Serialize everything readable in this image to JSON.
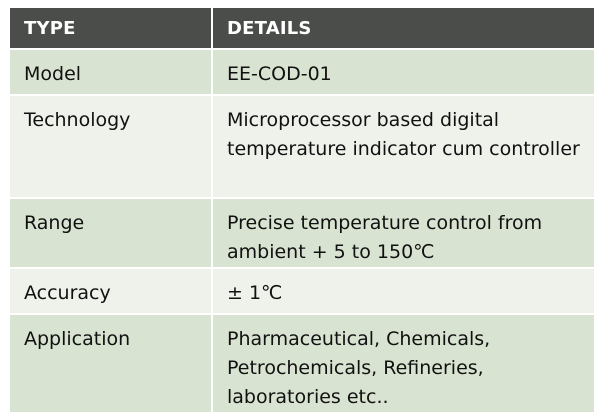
{
  "table": {
    "headers": [
      "TYPE",
      "DETAILS"
    ],
    "rows": [
      {
        "type": "Model",
        "details": "EE-COD-01"
      },
      {
        "type": "Technology",
        "details": "Microprocessor based digital temperature indicator cum controller"
      },
      {
        "type": "Range",
        "details": "Precise temperature control from ambient + 5 to 150℃"
      },
      {
        "type": "Accuracy",
        "details": "± 1℃"
      },
      {
        "type": "Application",
        "details": "Pharmaceutical, Chemicals, Petrochemicals, Refineries, laboratories etc.."
      }
    ]
  },
  "colors": {
    "header_bg": "#4a4d4a",
    "row_odd": "#d9e3d1",
    "row_even": "#eef2eb"
  }
}
